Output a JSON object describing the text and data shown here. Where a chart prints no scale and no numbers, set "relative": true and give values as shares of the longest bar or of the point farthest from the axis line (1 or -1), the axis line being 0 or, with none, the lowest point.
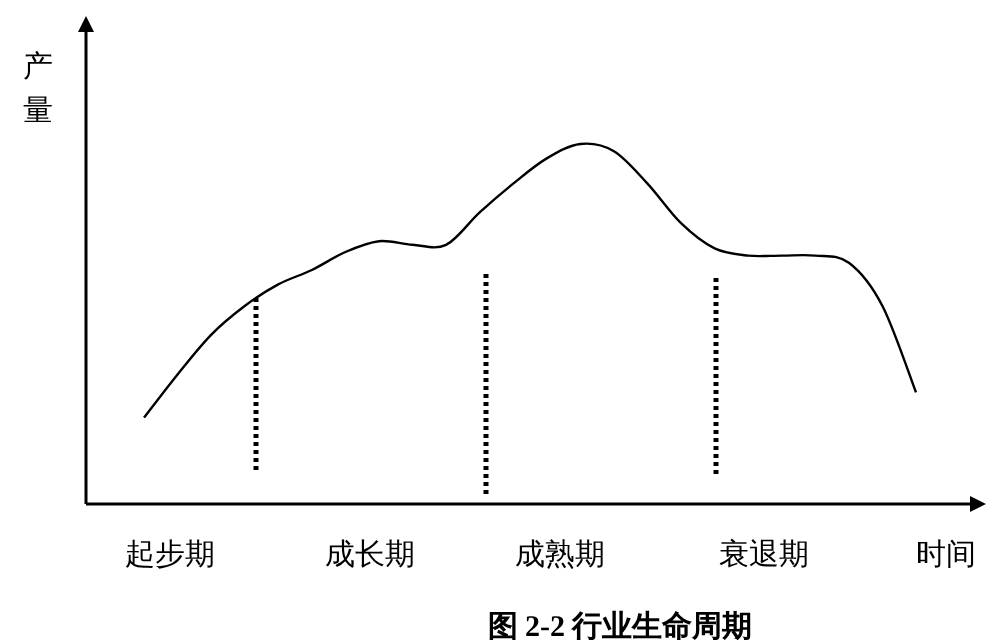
{
  "chart_data": {
    "type": "line",
    "relative": true,
    "title": "图 2-2  行业生命周期",
    "xlabel": "时间",
    "ylabel": "产量",
    "categories": [
      null,
      null,
      null,
      null,
      null,
      null,
      null,
      null,
      null,
      null,
      null,
      null,
      null,
      null,
      null,
      null,
      null,
      null,
      null,
      null,
      null,
      null,
      null,
      null
    ],
    "annotations": [
      "起步期",
      "成长期",
      "成熟期",
      "衰退期"
    ],
    "series": [
      {
        "color": "#000000",
        "values": [
          0.24,
          0.36,
          0.47,
          0.55,
          0.61,
          0.65,
          0.7,
          0.73,
          0.72,
          0.72,
          0.81,
          0.89,
          0.96,
          1,
          0.98,
          0.89,
          0.78,
          0.71,
          0.69,
          0.69,
          0.69,
          0.67,
          0.55,
          0.31
        ]
      }
    ],
    "grid": false,
    "marker": "none",
    "line_style": "solid"
  }
}
